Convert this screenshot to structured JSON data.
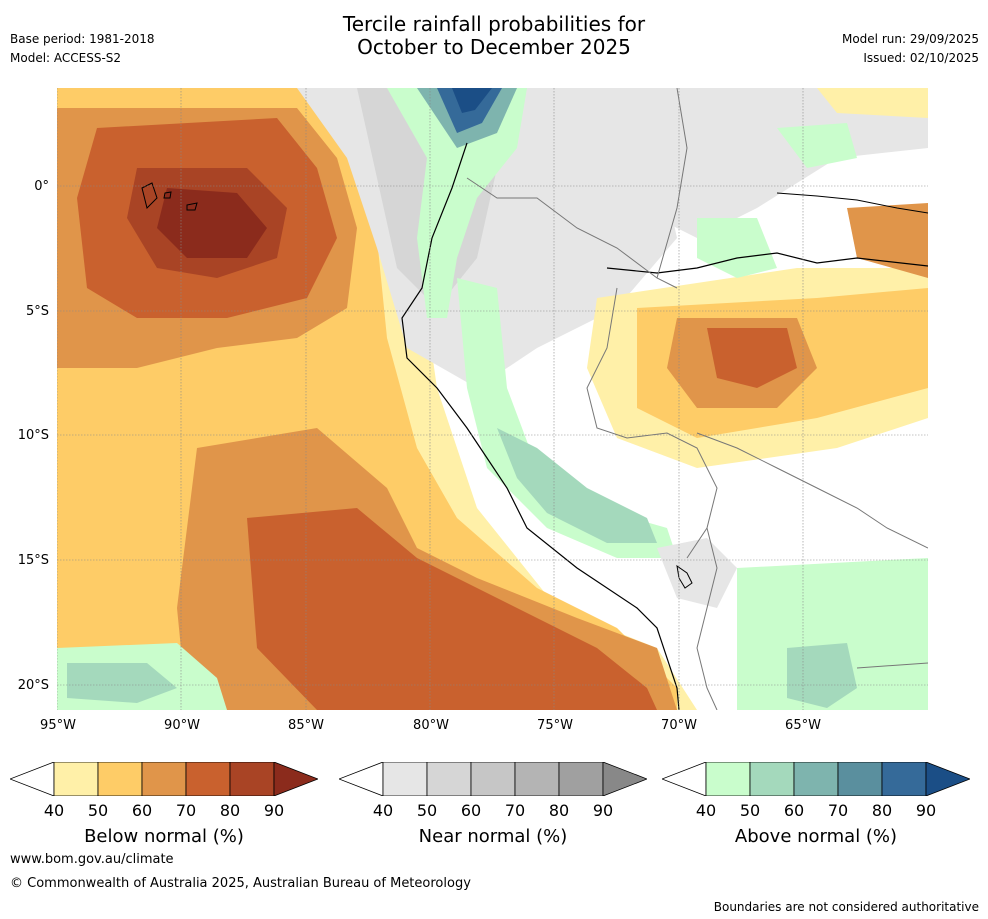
{
  "header": {
    "title_line1": "Tercile rainfall probabilities for",
    "title_line2": "October to December 2025",
    "base_period": "Base period: 1981-2018",
    "model": "Model: ACCESS-S2",
    "model_run": "Model run: 29/09/2025",
    "issued": "Issued: 02/10/2025"
  },
  "map": {
    "lat_labels": [
      "0°",
      "5°S",
      "10°S",
      "15°S",
      "20°S"
    ],
    "lon_labels": [
      "95°W",
      "90°W",
      "85°W",
      "80°W",
      "75°W",
      "70°W",
      "65°W"
    ],
    "region": "Western South America and eastern tropical Pacific",
    "colors": {
      "below": [
        "#fff0a8",
        "#fecc67",
        "#e0954a",
        "#c9612e",
        "#a94425",
        "#8b2b1c"
      ],
      "near": [
        "#e6e6e6",
        "#d6d6d6",
        "#c6c6c6",
        "#b4b4b4",
        "#a0a0a0",
        "#888888"
      ],
      "above": [
        "#c9fdcc",
        "#a4d9bc",
        "#7eb4ae",
        "#5a8f9e",
        "#356a99",
        "#1b4e86"
      ]
    }
  },
  "legends": [
    {
      "title": "Below normal (%)",
      "ticks": [
        "40",
        "50",
        "60",
        "70",
        "80",
        "90"
      ],
      "colors": [
        "#ffffff",
        "#fff0a8",
        "#fecc67",
        "#e0954a",
        "#c9612e",
        "#a94425",
        "#8b2b1c"
      ]
    },
    {
      "title": "Near normal (%)",
      "ticks": [
        "40",
        "50",
        "60",
        "70",
        "80",
        "90"
      ],
      "colors": [
        "#ffffff",
        "#e6e6e6",
        "#d6d6d6",
        "#c6c6c6",
        "#b4b4b4",
        "#a0a0a0",
        "#888888"
      ]
    },
    {
      "title": "Above normal (%)",
      "ticks": [
        "40",
        "50",
        "60",
        "70",
        "80",
        "90"
      ],
      "colors": [
        "#ffffff",
        "#c9fdcc",
        "#a4d9bc",
        "#7eb4ae",
        "#5a8f9e",
        "#356a99",
        "#1b4e86"
      ]
    }
  ],
  "footer": {
    "website": "www.bom.gov.au/climate",
    "copyright": "© Commonwealth of Australia 2025, Australian Bureau of Meteorology",
    "disclaimer": "Boundaries are not considered authoritative"
  }
}
